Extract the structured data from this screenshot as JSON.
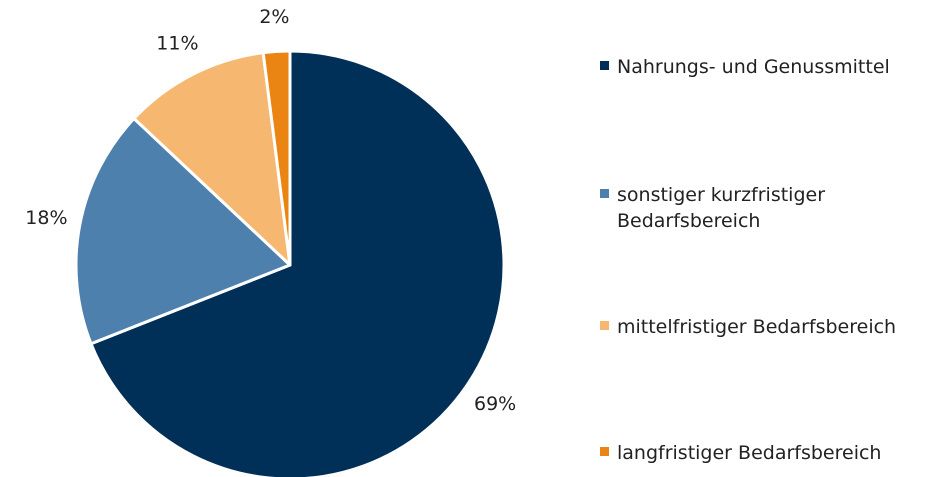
{
  "chart_data": {
    "type": "pie",
    "categories": [
      "Nahrungs- und Genussmittel",
      "sonstiger kurzfristiger\nBedarfsbereich",
      "mittelfristiger Bedarfsbereich",
      "langfristiger Bedarfsbereich"
    ],
    "values": [
      69,
      18,
      11,
      2
    ],
    "value_labels": [
      "69%",
      "18%",
      "11%",
      "2%"
    ],
    "colors": [
      "#003057",
      "#4e80ad",
      "#f6b870",
      "#ea8412"
    ]
  }
}
